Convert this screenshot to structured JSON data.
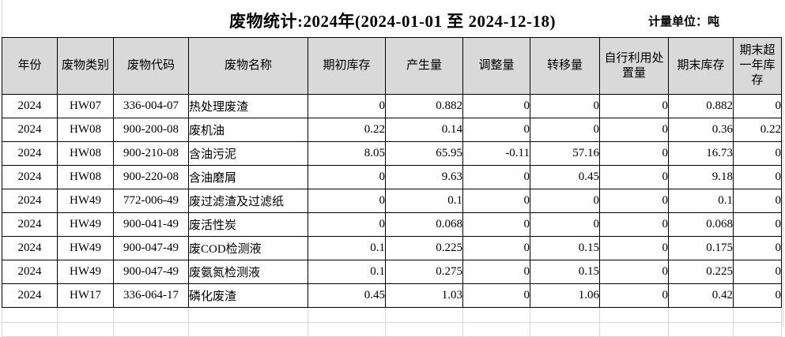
{
  "title": "废物统计:2024年(2024-01-01 至 2024-12-18)",
  "unit_label": "计量单位：吨",
  "table": {
    "headers": [
      "年份",
      "废物类别",
      "废物代码",
      "废物名称",
      "期初库存",
      "产生量",
      "调整量",
      "转移量",
      "自行利用处置量",
      "期末库存",
      "期末超一年库存"
    ],
    "rows": [
      [
        "2024",
        "HW07",
        "336-004-07",
        "热处理废渣",
        "0",
        "0.882",
        "0",
        "0",
        "0",
        "0.882",
        "0"
      ],
      [
        "2024",
        "HW08",
        "900-200-08",
        "废机油",
        "0.22",
        "0.14",
        "0",
        "0",
        "0",
        "0.36",
        "0.22"
      ],
      [
        "2024",
        "HW08",
        "900-210-08",
        "含油污泥",
        "8.05",
        "65.95",
        "-0.11",
        "57.16",
        "0",
        "16.73",
        "0"
      ],
      [
        "2024",
        "HW08",
        "900-220-08",
        "含油磨屑",
        "0",
        "9.63",
        "0",
        "0.45",
        "0",
        "9.18",
        "0"
      ],
      [
        "2024",
        "HW49",
        "772-006-49",
        "废过滤渣及过滤纸",
        "0",
        "0.1",
        "0",
        "0",
        "0",
        "0.1",
        "0"
      ],
      [
        "2024",
        "HW49",
        "900-041-49",
        "废活性炭",
        "0",
        "0.068",
        "0",
        "0",
        "0",
        "0.068",
        "0"
      ],
      [
        "2024",
        "HW49",
        "900-047-49",
        "废COD检测液",
        "0.1",
        "0.225",
        "0",
        "0.15",
        "0",
        "0.175",
        "0"
      ],
      [
        "2024",
        "HW49",
        "900-047-49",
        "废氨氮检测液",
        "0.1",
        "0.275",
        "0",
        "0.15",
        "0",
        "0.225",
        "0"
      ],
      [
        "2024",
        "HW17",
        "336-064-17",
        "磷化废渣",
        "0.45",
        "1.03",
        "0",
        "1.06",
        "0",
        "0.42",
        "0"
      ]
    ]
  },
  "colors": {
    "background": "#ffffff",
    "text": "#000000",
    "table_border": "#000000",
    "header_bg": "#d9d9d9",
    "faint_grid": "#d9d9d9"
  }
}
